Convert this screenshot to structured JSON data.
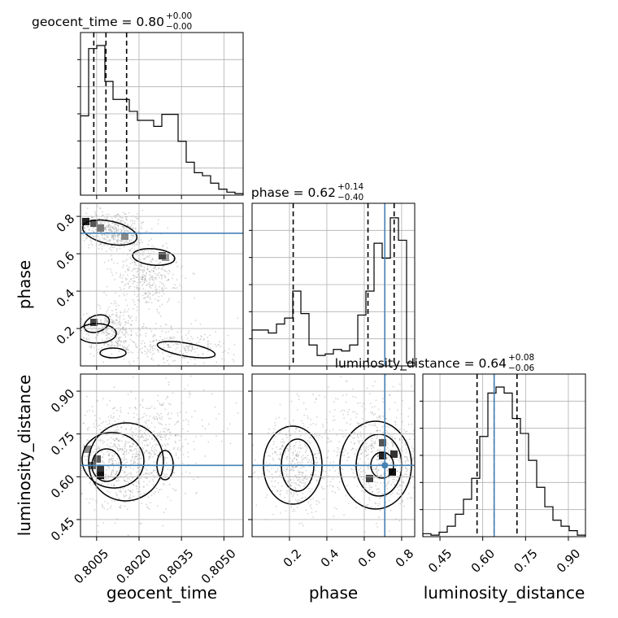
{
  "chart_data": {
    "type": "corner",
    "parameters": [
      "geocent_time",
      "phase",
      "luminosity_distance"
    ],
    "titles": [
      {
        "param": "geocent_time",
        "label": "geocent_time = 0.80",
        "sup": "+0.00",
        "sub": "−0.00"
      },
      {
        "param": "phase",
        "label": "phase = 0.62",
        "sup": "+0.14",
        "sub": "−0.40"
      },
      {
        "param": "luminosity_distance",
        "label": "luminosity_distance = 0.64",
        "sup": "+0.08",
        "sub": "−0.06"
      }
    ],
    "axis_labels": {
      "x": [
        "geocent_time",
        "phase",
        "luminosity_distance"
      ],
      "y": [
        "phase",
        "luminosity_distance"
      ]
    },
    "ticks": {
      "geocent_time": [
        "0.8005",
        "0.8020",
        "0.8035",
        "0.8050"
      ],
      "phase": [
        "0.2",
        "0.4",
        "0.6",
        "0.8"
      ],
      "luminosity_distance": [
        "0.45",
        "0.60",
        "0.75",
        "0.90"
      ]
    },
    "ranges": {
      "geocent_time": [
        0.79993,
        0.80568
      ],
      "phase": [
        0.0,
        0.87
      ],
      "luminosity_distance": [
        0.39,
        0.96
      ]
    },
    "truths": {
      "phase": 0.71,
      "luminosity_distance": 0.64
    },
    "quantiles": {
      "geocent_time": [
        0.8004,
        0.80083,
        0.80156
      ],
      "phase": [
        0.22,
        0.62,
        0.76
      ],
      "luminosity_distance": [
        0.58,
        0.64,
        0.72
      ]
    },
    "histograms": {
      "geocent_time": [
        0.53,
        0.98,
        1.0,
        0.76,
        0.64,
        0.64,
        0.56,
        0.5,
        0.5,
        0.46,
        0.54,
        0.54,
        0.36,
        0.22,
        0.15,
        0.13,
        0.08,
        0.04,
        0.02,
        0.01
      ],
      "phase": [
        0.24,
        0.24,
        0.22,
        0.28,
        0.32,
        0.5,
        0.35,
        0.14,
        0.07,
        0.08,
        0.11,
        0.1,
        0.14,
        0.34,
        0.5,
        0.82,
        0.72,
        0.99,
        0.84,
        0.02
      ],
      "luminosity_distance": [
        0.02,
        0.01,
        0.03,
        0.07,
        0.15,
        0.25,
        0.39,
        0.67,
        0.96,
        1.0,
        0.96,
        0.79,
        0.69,
        0.51,
        0.33,
        0.2,
        0.11,
        0.07,
        0.04,
        0.01
      ]
    },
    "grid": true,
    "truth_color": "#4682b4",
    "line_color": "#000000"
  }
}
